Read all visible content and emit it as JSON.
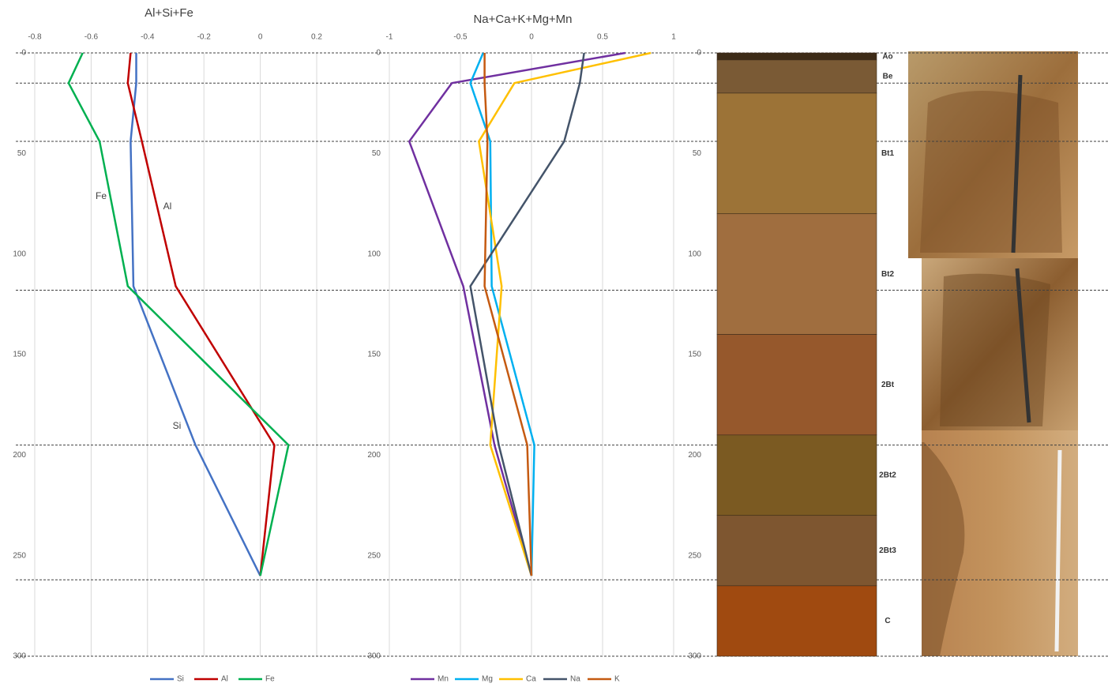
{
  "chart_data": [
    {
      "type": "line",
      "title": "Al+Si+Fe",
      "xlim": [
        -0.8,
        0.2
      ],
      "xticks": [
        -0.8,
        -0.6,
        -0.4,
        -0.2,
        0,
        0.2
      ],
      "ylim": [
        0,
        300
      ],
      "yticks": [
        0,
        50,
        100,
        150,
        200,
        250,
        300
      ],
      "y": [
        0,
        15,
        44,
        116,
        195,
        260
      ],
      "series": [
        {
          "name": "Si",
          "color": "#4472c4",
          "values": [
            -0.44,
            -0.44,
            -0.46,
            -0.45,
            -0.23,
            0
          ]
        },
        {
          "name": "Al",
          "color": "#c00000",
          "values": [
            -0.46,
            -0.47,
            -0.42,
            -0.3,
            0.05,
            0
          ]
        },
        {
          "name": "Fe",
          "color": "#00b050",
          "values": [
            -0.63,
            -0.68,
            -0.57,
            -0.47,
            0.1,
            0
          ]
        }
      ],
      "annotations": [
        "Fe",
        "Al",
        "Si"
      ],
      "reference_lines": [
        0,
        15,
        44,
        118,
        195,
        262,
        300
      ],
      "grid": true
    },
    {
      "type": "line",
      "title": "Na+Ca+K+Mg+Mn",
      "xlim": [
        -1,
        1
      ],
      "xticks": [
        -1,
        -0.5,
        0,
        0.5,
        1
      ],
      "ylim": [
        0,
        300
      ],
      "yticks": [
        0,
        50,
        100,
        150,
        200,
        250,
        300
      ],
      "y": [
        0,
        15,
        44,
        116,
        195,
        260
      ],
      "series": [
        {
          "name": "Mn",
          "color": "#7030a0",
          "values": [
            0.66,
            -0.56,
            -0.86,
            -0.48,
            -0.26,
            0
          ]
        },
        {
          "name": "Mg",
          "color": "#00b0f0",
          "values": [
            -0.34,
            -0.43,
            -0.29,
            -0.28,
            0.02,
            0
          ]
        },
        {
          "name": "Ca",
          "color": "#ffc000",
          "values": [
            0.84,
            -0.12,
            -0.37,
            -0.21,
            -0.29,
            0
          ]
        },
        {
          "name": "Na",
          "color": "#44546a",
          "values": [
            0.37,
            0.34,
            0.23,
            -0.43,
            -0.23,
            0
          ]
        },
        {
          "name": "K",
          "color": "#c55a11",
          "values": [
            -0.33,
            -0.33,
            -0.31,
            -0.33,
            -0.03,
            0
          ]
        }
      ],
      "grid": true
    },
    {
      "type": "column",
      "ylim": [
        0,
        300
      ],
      "yticks": [
        0,
        50,
        100,
        150,
        200,
        250,
        300
      ],
      "categories": [
        "Ao",
        "Be",
        "Bt1",
        "Bt2",
        "2Bt",
        "2Bt2",
        "2Bt3",
        "C"
      ],
      "boundaries": [
        0,
        3.5,
        20,
        80,
        140,
        190,
        230,
        265,
        300
      ],
      "colors": [
        "#3d2b17",
        "#7a5a35",
        "#9c7337",
        "#a06e3f",
        "#96582c",
        "#7b5a22",
        "#7e5630",
        "#a04a10"
      ]
    }
  ]
}
